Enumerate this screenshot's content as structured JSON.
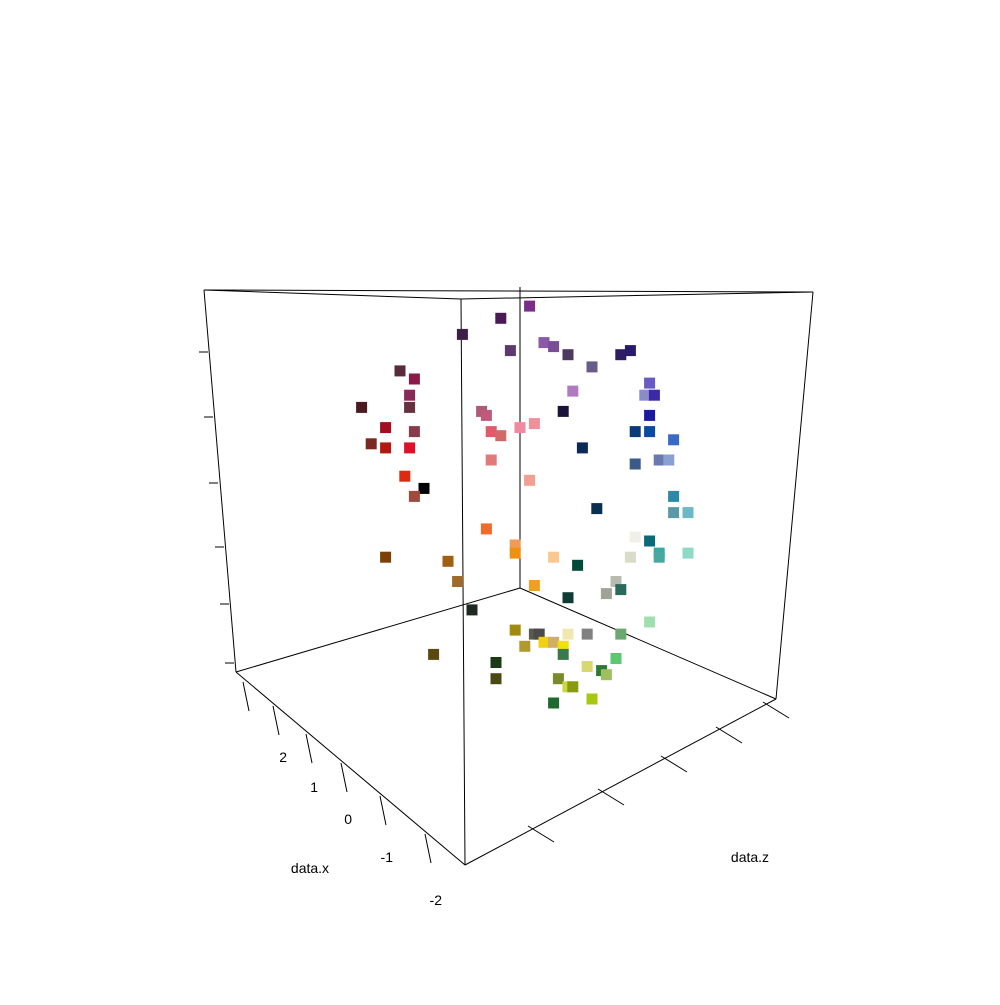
{
  "chart_data": {
    "type": "scatter",
    "x_label": "data.x",
    "z_label": "data.z",
    "x_ticks": [
      "2",
      "1",
      "0",
      "-1",
      "-2"
    ],
    "background": "#ffffff",
    "axis_color": "#000000",
    "marker": "square",
    "points": [
      {
        "c": "#7a2d8a",
        "u": 0.52,
        "v": 0.02
      },
      {
        "c": "#4a1a55",
        "u": 0.46,
        "v": 0.05
      },
      {
        "c": "#3e1f48",
        "u": 0.38,
        "v": 0.09
      },
      {
        "c": "#5c3a6e",
        "u": 0.48,
        "v": 0.13
      },
      {
        "c": "#8a5aa8",
        "u": 0.55,
        "v": 0.11
      },
      {
        "c": "#7a4e96",
        "u": 0.57,
        "v": 0.12
      },
      {
        "c": "#4b3b5e",
        "u": 0.6,
        "v": 0.14
      },
      {
        "c": "#6a5c8a",
        "u": 0.65,
        "v": 0.17
      },
      {
        "c": "#2e1c64",
        "u": 0.71,
        "v": 0.14
      },
      {
        "c": "#2a1a6a",
        "u": 0.73,
        "v": 0.13
      },
      {
        "c": "#b07ac0",
        "u": 0.61,
        "v": 0.23
      },
      {
        "c": "#1c1438",
        "u": 0.59,
        "v": 0.28
      },
      {
        "c": "#6a5ac8",
        "u": 0.77,
        "v": 0.21
      },
      {
        "c": "#8a8cc8",
        "u": 0.76,
        "v": 0.24
      },
      {
        "c": "#3a2aa8",
        "u": 0.78,
        "v": 0.24
      },
      {
        "c": "#1a1a9a",
        "u": 0.77,
        "v": 0.29
      },
      {
        "c": "#0a4aa0",
        "u": 0.77,
        "v": 0.33
      },
      {
        "c": "#0a3a78",
        "u": 0.74,
        "v": 0.33
      },
      {
        "c": "#0a2a58",
        "u": 0.63,
        "v": 0.37
      },
      {
        "c": "#3a5a88",
        "u": 0.74,
        "v": 0.41
      },
      {
        "c": "#6a7ab0",
        "u": 0.79,
        "v": 0.4
      },
      {
        "c": "#8aa0d0",
        "u": 0.81,
        "v": 0.4
      },
      {
        "c": "#3a6ac8",
        "u": 0.82,
        "v": 0.35
      },
      {
        "c": "#0a3050",
        "u": 0.66,
        "v": 0.52
      },
      {
        "c": "#2a8aa8",
        "u": 0.82,
        "v": 0.49
      },
      {
        "c": "#5a9aa8",
        "u": 0.82,
        "v": 0.53
      },
      {
        "c": "#6ab8c8",
        "u": 0.85,
        "v": 0.53
      },
      {
        "c": "#0a6a78",
        "u": 0.77,
        "v": 0.6
      },
      {
        "c": "#5a2a3a",
        "u": 0.25,
        "v": 0.18
      },
      {
        "c": "#8a1a4a",
        "u": 0.28,
        "v": 0.2
      },
      {
        "c": "#8a2a5a",
        "u": 0.27,
        "v": 0.24
      },
      {
        "c": "#6a3040",
        "u": 0.27,
        "v": 0.27
      },
      {
        "c": "#4a1a20",
        "u": 0.17,
        "v": 0.27
      },
      {
        "c": "#a01020",
        "u": 0.22,
        "v": 0.32
      },
      {
        "c": "#8a3a4a",
        "u": 0.28,
        "v": 0.33
      },
      {
        "c": "#7a2a20",
        "u": 0.19,
        "v": 0.36
      },
      {
        "c": "#b01a10",
        "u": 0.22,
        "v": 0.37
      },
      {
        "c": "#e0102a",
        "u": 0.27,
        "v": 0.37
      },
      {
        "c": "#e02a10",
        "u": 0.26,
        "v": 0.44
      },
      {
        "c": "#000000",
        "u": 0.3,
        "v": 0.47
      },
      {
        "c": "#a04a3a",
        "u": 0.28,
        "v": 0.49
      },
      {
        "c": "#b05a7a",
        "u": 0.42,
        "v": 0.28
      },
      {
        "c": "#c05a78",
        "u": 0.43,
        "v": 0.29
      },
      {
        "c": "#e05a6a",
        "u": 0.44,
        "v": 0.33
      },
      {
        "c": "#d06a6a",
        "u": 0.46,
        "v": 0.34
      },
      {
        "c": "#e07a7a",
        "u": 0.44,
        "v": 0.4
      },
      {
        "c": "#f08aa0",
        "u": 0.5,
        "v": 0.32
      },
      {
        "c": "#f0909a",
        "u": 0.53,
        "v": 0.31
      },
      {
        "c": "#f0a090",
        "u": 0.52,
        "v": 0.45
      },
      {
        "c": "#f06a2a",
        "u": 0.43,
        "v": 0.57
      },
      {
        "c": "#7a4008",
        "u": 0.22,
        "v": 0.64
      },
      {
        "c": "#a06010",
        "u": 0.35,
        "v": 0.65
      },
      {
        "c": "#a06a2a",
        "u": 0.37,
        "v": 0.7
      },
      {
        "c": "#f09a5a",
        "u": 0.49,
        "v": 0.61
      },
      {
        "c": "#f09010",
        "u": 0.49,
        "v": 0.63
      },
      {
        "c": "#f8c890",
        "u": 0.57,
        "v": 0.64
      },
      {
        "c": "#f0a020",
        "u": 0.53,
        "v": 0.71
      },
      {
        "c": "#1e2a20",
        "u": 0.4,
        "v": 0.77
      },
      {
        "c": "#04473c",
        "u": 0.62,
        "v": 0.66
      },
      {
        "c": "#103a34",
        "u": 0.6,
        "v": 0.74
      },
      {
        "c": "#f0f0e8",
        "u": 0.74,
        "v": 0.59
      },
      {
        "c": "#d8dcc8",
        "u": 0.73,
        "v": 0.64
      },
      {
        "c": "#b8bcb0",
        "u": 0.7,
        "v": 0.7
      },
      {
        "c": "#a0a498",
        "u": 0.68,
        "v": 0.73
      },
      {
        "c": "#2a6a5a",
        "u": 0.71,
        "v": 0.72
      },
      {
        "c": "#3aaaa0",
        "u": 0.79,
        "v": 0.63
      },
      {
        "c": "#4aa8a0",
        "u": 0.79,
        "v": 0.64
      },
      {
        "c": "#90d8c8",
        "u": 0.85,
        "v": 0.63
      },
      {
        "c": "#a0e0b0",
        "u": 0.77,
        "v": 0.8
      },
      {
        "c": "#6aa870",
        "u": 0.71,
        "v": 0.83
      },
      {
        "c": "#5ac870",
        "u": 0.7,
        "v": 0.89
      },
      {
        "c": "#a08a10",
        "u": 0.49,
        "v": 0.82
      },
      {
        "c": "#5a5a4a",
        "u": 0.53,
        "v": 0.83
      },
      {
        "c": "#4a4a4a",
        "u": 0.54,
        "v": 0.83
      },
      {
        "c": "#f0d010",
        "u": 0.55,
        "v": 0.85
      },
      {
        "c": "#d0b060",
        "u": 0.57,
        "v": 0.85
      },
      {
        "c": "#f0e8b0",
        "u": 0.6,
        "v": 0.83
      },
      {
        "c": "#f0e010",
        "u": 0.59,
        "v": 0.86
      },
      {
        "c": "#b09a30",
        "u": 0.51,
        "v": 0.86
      },
      {
        "c": "#3a7a4a",
        "u": 0.59,
        "v": 0.88
      },
      {
        "c": "#808080",
        "u": 0.64,
        "v": 0.83
      },
      {
        "c": "#d8d870",
        "u": 0.64,
        "v": 0.91
      },
      {
        "c": "#2a7a3a",
        "u": 0.67,
        "v": 0.92
      },
      {
        "c": "#a0c060",
        "u": 0.68,
        "v": 0.93
      },
      {
        "c": "#7a8a2a",
        "u": 0.58,
        "v": 0.94
      },
      {
        "c": "#c8d840",
        "u": 0.6,
        "v": 0.96
      },
      {
        "c": "#8a9a10",
        "u": 0.61,
        "v": 0.96
      },
      {
        "c": "#a8c810",
        "u": 0.65,
        "v": 0.99
      },
      {
        "c": "#206a30",
        "u": 0.57,
        "v": 1.0
      },
      {
        "c": "#5a4a10",
        "u": 0.32,
        "v": 0.88
      },
      {
        "c": "#1a3a14",
        "u": 0.45,
        "v": 0.9
      },
      {
        "c": "#4a4a10",
        "u": 0.45,
        "v": 0.94
      }
    ]
  }
}
